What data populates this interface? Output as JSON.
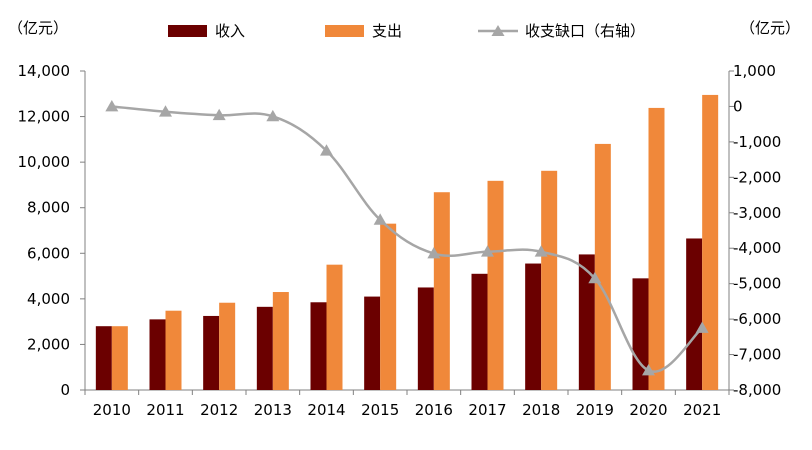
{
  "chart_data": {
    "type": "bar",
    "categories": [
      "2010",
      "2011",
      "2012",
      "2013",
      "2014",
      "2015",
      "2016",
      "2017",
      "2018",
      "2019",
      "2020",
      "2021"
    ],
    "series": [
      {
        "name": "收入",
        "type": "bar",
        "axis": "left",
        "color": "#6b0000",
        "values": [
          2800,
          3100,
          3250,
          3650,
          3850,
          4100,
          4500,
          5100,
          5550,
          5950,
          4900,
          6650
        ]
      },
      {
        "name": "支出",
        "type": "bar",
        "axis": "left",
        "color": "#f0883a",
        "values": [
          2800,
          3480,
          3830,
          4300,
          5500,
          7300,
          8680,
          9180,
          9620,
          10800,
          12380,
          12950
        ]
      },
      {
        "name": "收支缺口（右轴）",
        "type": "line",
        "axis": "right",
        "color": "#a6a6a6",
        "values": [
          0,
          -150,
          -250,
          -280,
          -1250,
          -3200,
          -4150,
          -4100,
          -4100,
          -4850,
          -7450,
          -6250
        ]
      }
    ],
    "left_axis": {
      "unit_label": "（亿元）",
      "ylim": [
        0,
        14000
      ],
      "ticks": [
        "0",
        "2,000",
        "4,000",
        "6,000",
        "8,000",
        "10,000",
        "12,000",
        "14,000"
      ]
    },
    "right_axis": {
      "unit_label": "（亿元）",
      "ylim": [
        -8000,
        1000
      ],
      "ticks": [
        "-8,000",
        "-7,000",
        "-6,000",
        "-5,000",
        "-4,000",
        "-3,000",
        "-2,000",
        "-1,000",
        "0",
        "1,000"
      ]
    },
    "legend_position": "top",
    "grid": false
  }
}
